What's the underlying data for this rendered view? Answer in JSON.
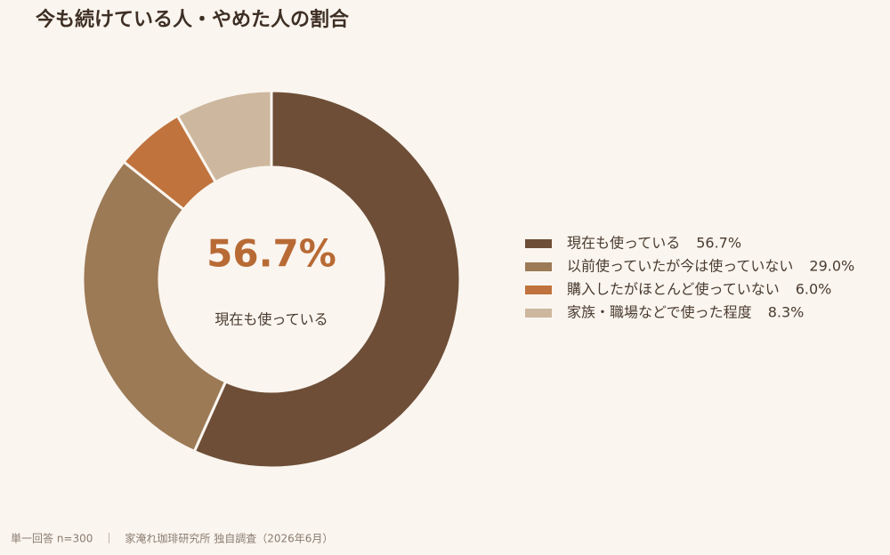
{
  "chart_data": {
    "type": "pie",
    "title": "今も続けている人・やめた人の割合",
    "categories": [
      "現在も使っている",
      "以前使っていたが今は使っていない",
      "購入したがほとんど使っていない",
      "家族・職場などで使った程度"
    ],
    "values": [
      56.7,
      29.0,
      6.0,
      8.3
    ],
    "value_labels": [
      "56.7%",
      "29.0%",
      "6.0%",
      "8.3%"
    ],
    "colors": [
      "#6e4e37",
      "#9c7a56",
      "#c0733d",
      "#cdb79e"
    ],
    "source": "単一回答 n=300　｜　家淹れ珈琲研究所 独自調査（2026年6月）"
  }
}
